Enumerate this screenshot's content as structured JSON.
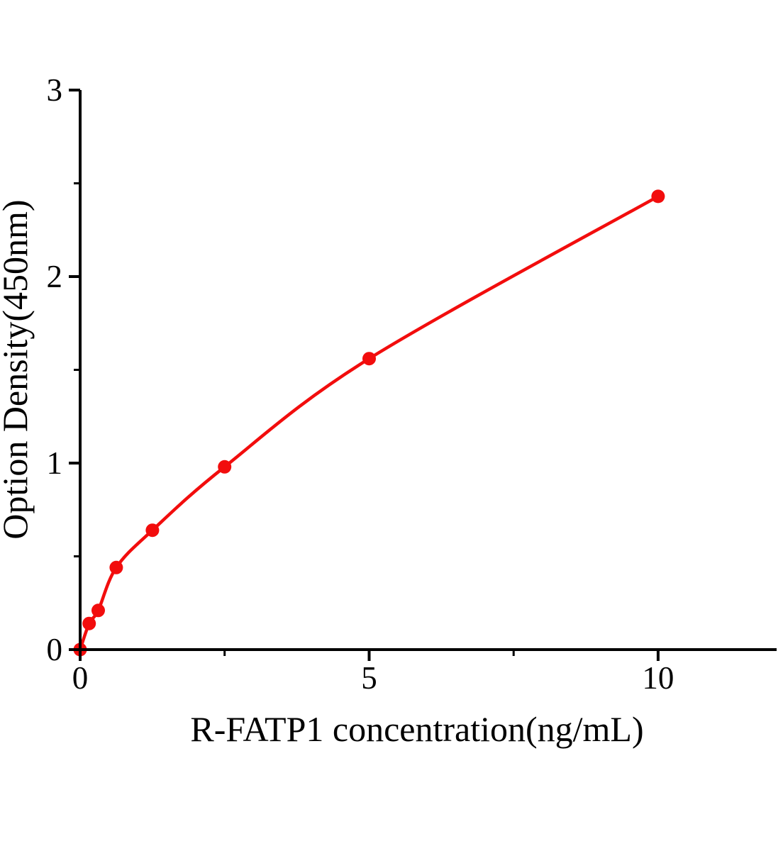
{
  "figure": {
    "background": "#ffffff"
  },
  "chart_data": {
    "type": "line",
    "title": "",
    "xlabel": "R-FATP1 concentration(ng/mL)",
    "ylabel": "Option Density(450nm)",
    "x": [
      0,
      0.156,
      0.3125,
      0.625,
      1.25,
      2.5,
      5,
      10
    ],
    "series": [
      {
        "values": [
          0,
          0.14,
          0.21,
          0.44,
          0.64,
          0.98,
          1.56,
          2.43
        ]
      }
    ],
    "xlim": [
      0,
      12.05
    ],
    "ylim": [
      0,
      3
    ],
    "x_ticks_major": [
      0,
      5,
      10
    ],
    "x_ticks_minor": [
      2.5,
      7.5
    ],
    "y_ticks_major": [
      0,
      1,
      2,
      3
    ],
    "y_ticks_minor": [
      0.5,
      1.5,
      2.5
    ],
    "grid": false,
    "legend": "none",
    "line_color": "#f20d0d",
    "marker_color": "#f20d0d",
    "marker_shape": "circle",
    "axis_color": "#000000"
  }
}
